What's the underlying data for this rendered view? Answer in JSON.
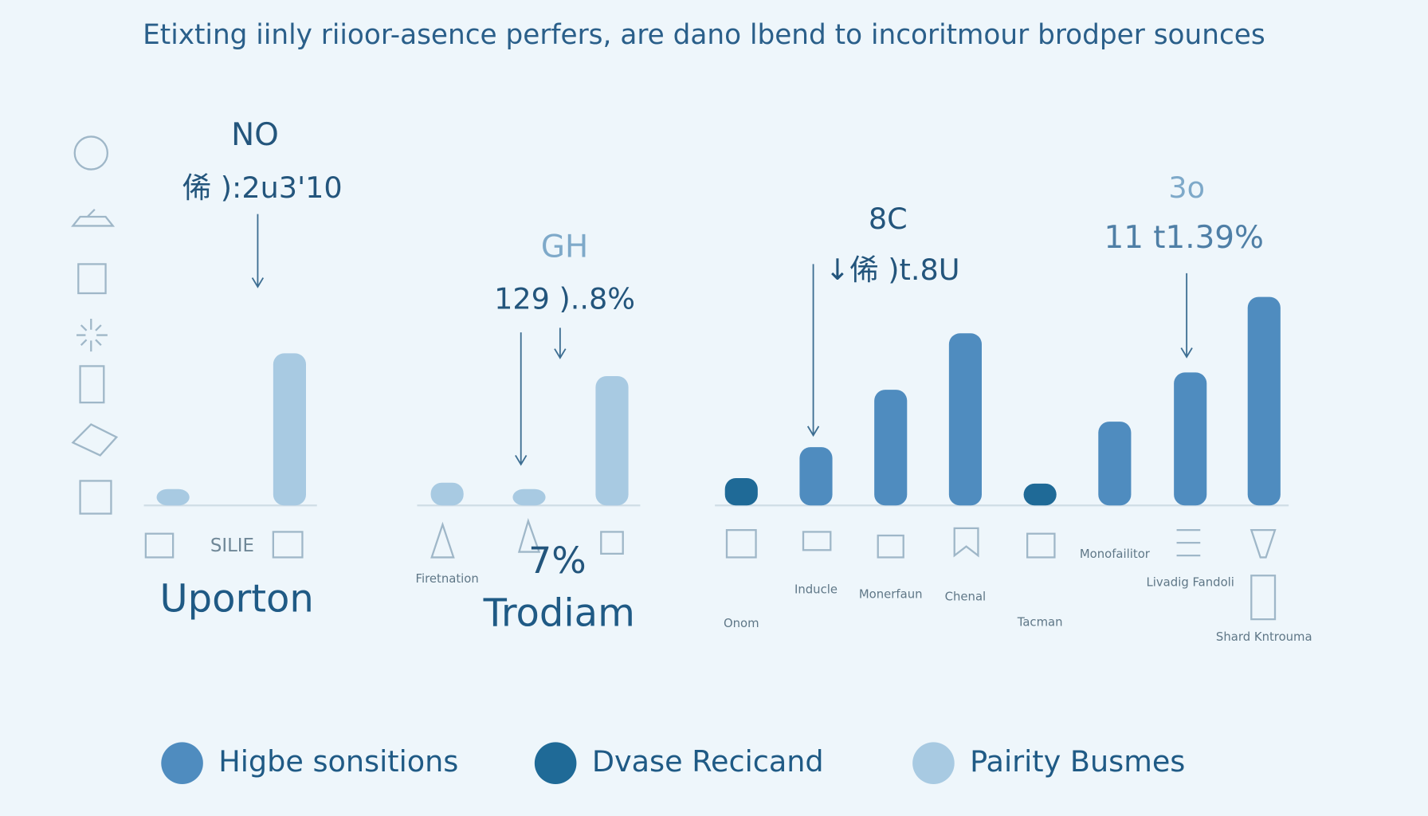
{
  "chart_data": {
    "type": "bar",
    "title": "Etixting iinly riioor-asence perfers, are dano lbend to incoritmour brodper sounces",
    "categories": [
      null,
      null,
      "Firetnation",
      null,
      null,
      "Onom",
      "Inducle",
      "Monerfaun",
      "Chenal",
      "Tacman",
      "Monofailitor",
      "Livadig Fandoli",
      "Shard Kntrouma"
    ],
    "groups": [
      "Uporton",
      "Trodiam"
    ],
    "series": [
      {
        "name": "Higbe sonsitions",
        "color": "#4f8cbf",
        "values": [
          null,
          null,
          null,
          null,
          null,
          null,
          64,
          127,
          189,
          null,
          92,
          146,
          229
        ]
      },
      {
        "name": "Dvase Recicand",
        "color": "#1f6a97",
        "values": [
          null,
          null,
          null,
          null,
          null,
          30,
          null,
          null,
          null,
          24,
          null,
          null,
          null
        ]
      },
      {
        "name": "Pairity Busmes",
        "color": "#a8cae2",
        "values": [
          18,
          167,
          25,
          18,
          142,
          null,
          null,
          null,
          null,
          null,
          null,
          null,
          null
        ]
      }
    ],
    "annotations": [
      "NO",
      "俙 ):2u3'10",
      "GH",
      "129 )..8%",
      "8C",
      "↓俙 )t.8U",
      "3o",
      "11 t1.39%",
      "SILIE",
      "7%"
    ]
  }
}
